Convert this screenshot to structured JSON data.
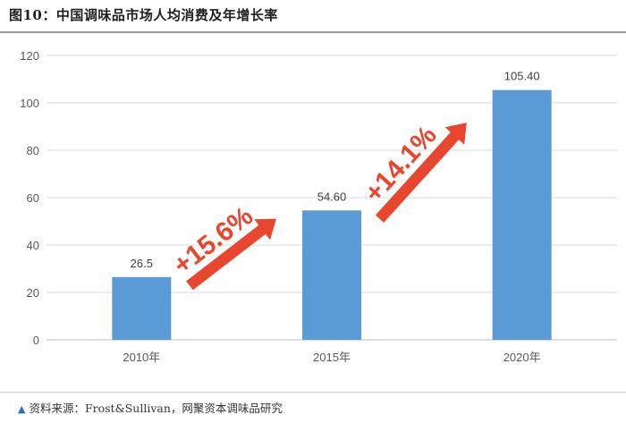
{
  "figure": {
    "title": "图10：中国调味品市场人均消费及年增长率",
    "source_marker": "▲",
    "source": "资料来源：Frost&Sullivan，网聚资本调味品研究"
  },
  "colors": {
    "bar": "#5b9bd5",
    "arrow": "#e8462f",
    "arrow_stroke": "#ffffff",
    "axis_text": "#595959",
    "grid": "#d9d9d9"
  },
  "chart_data": {
    "type": "bar",
    "categories": [
      "2010年",
      "2015年",
      "2020年"
    ],
    "values": [
      26.5,
      54.6,
      105.4
    ],
    "data_labels": [
      "26.5",
      "54.60",
      "105.40"
    ],
    "ylim": [
      0,
      120
    ],
    "yticks": [
      "0",
      "20",
      "40",
      "60",
      "80",
      "100",
      "120"
    ],
    "grid": true,
    "annotations": [
      {
        "from": "2010年",
        "to": "2015年",
        "text": "+15.6%"
      },
      {
        "from": "2015年",
        "to": "2020年",
        "text": "+14.1%"
      }
    ]
  }
}
